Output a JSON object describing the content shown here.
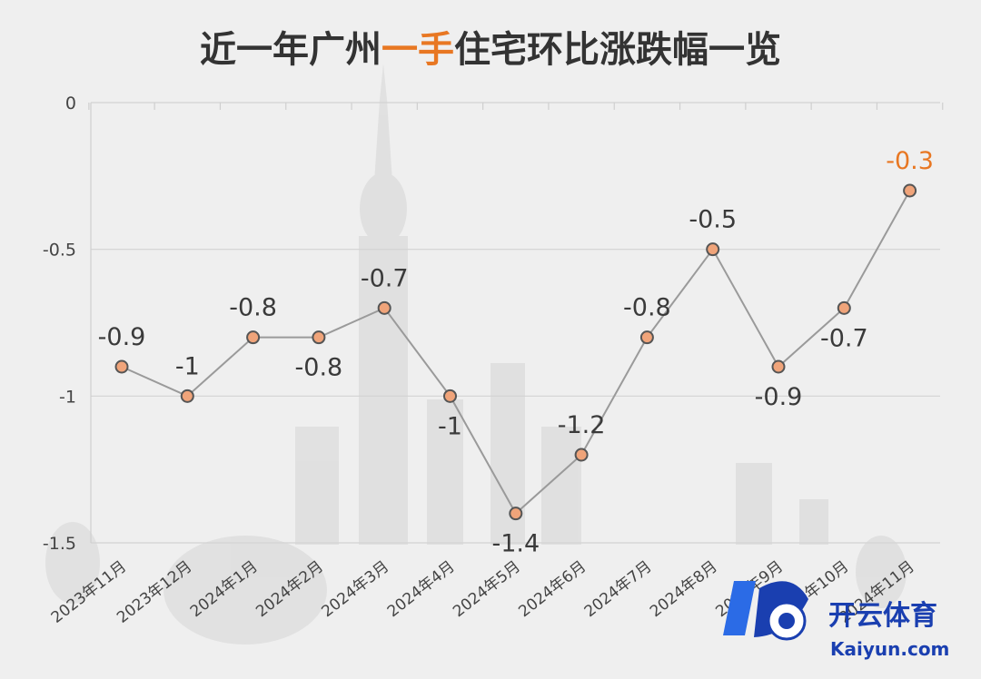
{
  "chart_data": {
    "type": "line",
    "title_parts": [
      {
        "text": "近一年广州",
        "color": "#333333"
      },
      {
        "text": "一手",
        "color": "#e87722"
      },
      {
        "text": "住宅环比涨跌幅一览",
        "color": "#333333"
      }
    ],
    "categories": [
      "2023年11月",
      "2023年12月",
      "2024年1月",
      "2024年2月",
      "2024年3月",
      "2024年4月",
      "2024年5月",
      "2024年6月",
      "2024年7月",
      "2024年8月",
      "2024年9月",
      "2024年10月",
      "2024年11月"
    ],
    "series": [
      {
        "values": [
          -0.9,
          -1,
          -0.8,
          -0.8,
          -0.7,
          -1,
          -1.4,
          -1.2,
          -0.8,
          -0.5,
          -0.9,
          -0.7,
          -0.3
        ]
      }
    ],
    "data_labels": [
      "-0.9",
      "-1",
      "-0.8",
      "-0.8",
      "-0.7",
      "-1",
      "-1.4",
      "-1.2",
      "-0.8",
      "-0.5",
      "-0.9",
      "-0.7",
      "-0.3"
    ],
    "label_positions": [
      "above",
      "above",
      "above",
      "below",
      "above",
      "below",
      "below",
      "above",
      "above",
      "above",
      "below",
      "below",
      "above"
    ],
    "highlight_index": 12,
    "highlight_color": "#e87722",
    "marker_color": "#f0a47a",
    "line_color": "#9a9a9a",
    "yticks": [
      0,
      -0.5,
      -1,
      -1.5
    ],
    "ytick_labels": [
      "0",
      "-0.5",
      "-1",
      "-1.5"
    ],
    "ylim": [
      -1.5,
      0
    ],
    "grid": true,
    "xlabel": "",
    "ylabel": ""
  },
  "watermark": {
    "brand_cn": "开云体育",
    "brand_en": "Kaiyun.com",
    "brand_color": "#1a3fb0"
  }
}
